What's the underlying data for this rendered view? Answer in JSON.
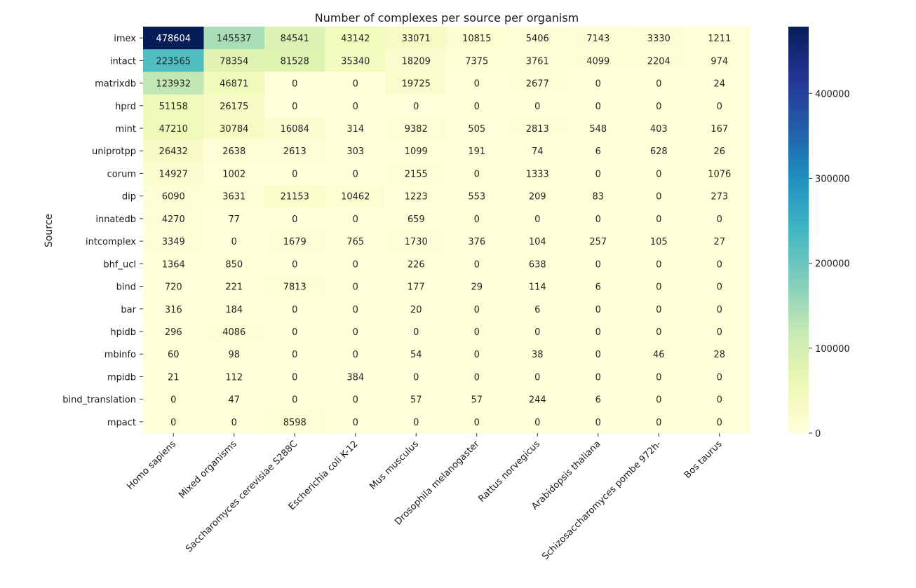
{
  "chart_data": {
    "type": "heatmap",
    "title": "Number of complexes per source per organism",
    "ylabel": "Source",
    "xlabel": "",
    "rows": [
      "imex",
      "intact",
      "matrixdb",
      "hprd",
      "mint",
      "uniprotpp",
      "corum",
      "dip",
      "innatedb",
      "intcomplex",
      "bhf_ucl",
      "bind",
      "bar",
      "hpidb",
      "mbinfo",
      "mpidb",
      "bind_translation",
      "mpact"
    ],
    "columns": [
      "Homo sapiens",
      "Mixed organisms",
      "Saccharomyces cerevisiae S288C",
      "Escherichia coli K-12",
      "Mus musculus",
      "Drosophila melanogaster",
      "Rattus norvegicus",
      "Arabidopsis thaliana",
      "Schizosaccharomyces pombe 972h-",
      "Bos taurus"
    ],
    "values": [
      [
        478604,
        145537,
        84541,
        43142,
        33071,
        10815,
        5406,
        7143,
        3330,
        1211
      ],
      [
        223565,
        78354,
        81528,
        35340,
        18209,
        7375,
        3761,
        4099,
        2204,
        974
      ],
      [
        123932,
        46871,
        0,
        0,
        19725,
        0,
        2677,
        0,
        0,
        24
      ],
      [
        51158,
        26175,
        0,
        0,
        0,
        0,
        0,
        0,
        0,
        0
      ],
      [
        47210,
        30784,
        16084,
        314,
        9382,
        505,
        2813,
        548,
        403,
        167
      ],
      [
        26432,
        2638,
        2613,
        303,
        1099,
        191,
        74,
        6,
        628,
        26
      ],
      [
        14927,
        1002,
        0,
        0,
        2155,
        0,
        1333,
        0,
        0,
        1076
      ],
      [
        6090,
        3631,
        21153,
        10462,
        1223,
        553,
        209,
        83,
        0,
        273
      ],
      [
        4270,
        77,
        0,
        0,
        659,
        0,
        0,
        0,
        0,
        0
      ],
      [
        3349,
        0,
        1679,
        765,
        1730,
        376,
        104,
        257,
        105,
        27
      ],
      [
        1364,
        850,
        0,
        0,
        226,
        0,
        638,
        0,
        0,
        0
      ],
      [
        720,
        221,
        7813,
        0,
        177,
        29,
        114,
        6,
        0,
        0
      ],
      [
        316,
        184,
        0,
        0,
        20,
        0,
        6,
        0,
        0,
        0
      ],
      [
        296,
        4086,
        0,
        0,
        0,
        0,
        0,
        0,
        0,
        0
      ],
      [
        60,
        98,
        0,
        0,
        54,
        0,
        38,
        0,
        46,
        28
      ],
      [
        21,
        112,
        0,
        384,
        0,
        0,
        0,
        0,
        0,
        0
      ],
      [
        0,
        47,
        0,
        0,
        57,
        57,
        244,
        6,
        0,
        0
      ],
      [
        0,
        0,
        8598,
        0,
        0,
        0,
        0,
        0,
        0,
        0
      ]
    ],
    "colormap": "YlGnBu",
    "vmin": 0,
    "vmax": 478604,
    "colorbar_ticks": [
      0,
      100000,
      200000,
      300000,
      400000
    ],
    "grid": false
  }
}
